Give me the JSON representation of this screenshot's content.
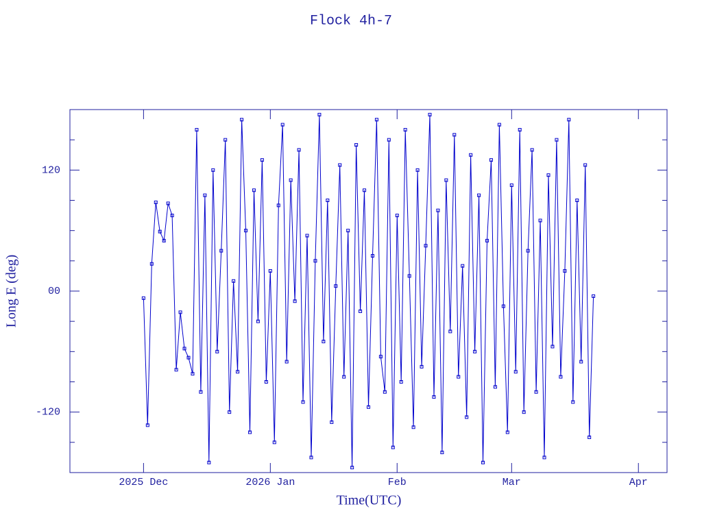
{
  "chart_data": {
    "type": "line",
    "title": "Flock 4h-7",
    "x_label": "Time(UTC)",
    "y_label": "Long E (deg)",
    "color": "#0000cc",
    "markers": true,
    "xlim": [
      "2025-11-13",
      "2026-04-08"
    ],
    "ylim": [
      -180,
      180
    ],
    "xticks": [
      {
        "value": "2025-12-01",
        "label": "2025 Dec"
      },
      {
        "value": "2026-01-01",
        "label": "2026 Jan"
      },
      {
        "value": "2026-02-01",
        "label": "Feb"
      },
      {
        "value": "2026-03-01",
        "label": "Mar"
      },
      {
        "value": "2026-04-01",
        "label": "Apr"
      }
    ],
    "yticks": [
      -120,
      {
        "value": 0,
        "label": "00"
      },
      120
    ],
    "minor_yticks": [
      -150,
      -90,
      -60,
      -30,
      30,
      60,
      90,
      150
    ],
    "x": [
      "2025-12-01",
      "2025-12-02",
      "2025-12-03",
      "2025-12-04",
      "2025-12-05",
      "2025-12-06",
      "2025-12-07",
      "2025-12-08",
      "2025-12-09",
      "2025-12-10",
      "2025-12-11",
      "2025-12-12",
      "2025-12-13",
      "2025-12-14",
      "2025-12-15",
      "2025-12-16",
      "2025-12-17",
      "2025-12-18",
      "2025-12-19",
      "2025-12-20",
      "2025-12-21",
      "2025-12-22",
      "2025-12-23",
      "2025-12-24",
      "2025-12-25",
      "2025-12-26",
      "2025-12-27",
      "2025-12-28",
      "2025-12-29",
      "2025-12-30",
      "2025-12-31",
      "2026-01-01",
      "2026-01-02",
      "2026-01-03",
      "2026-01-04",
      "2026-01-05",
      "2026-01-06",
      "2026-01-07",
      "2026-01-08",
      "2026-01-09",
      "2026-01-10",
      "2026-01-11",
      "2026-01-12",
      "2026-01-13",
      "2026-01-14",
      "2026-01-15",
      "2026-01-16",
      "2026-01-17",
      "2026-01-18",
      "2026-01-19",
      "2026-01-20",
      "2026-01-21",
      "2026-01-22",
      "2026-01-23",
      "2026-01-24",
      "2026-01-25",
      "2026-01-26",
      "2026-01-27",
      "2026-01-28",
      "2026-01-29",
      "2026-01-30",
      "2026-01-31",
      "2026-02-01",
      "2026-02-02",
      "2026-02-03",
      "2026-02-04",
      "2026-02-05",
      "2026-02-06",
      "2026-02-07",
      "2026-02-08",
      "2026-02-09",
      "2026-02-10",
      "2026-02-11",
      "2026-02-12",
      "2026-02-13",
      "2026-02-14",
      "2026-02-15",
      "2026-02-16",
      "2026-02-17",
      "2026-02-18",
      "2026-02-19",
      "2026-02-20",
      "2026-02-21",
      "2026-02-22",
      "2026-02-23",
      "2026-02-24",
      "2026-02-25",
      "2026-02-26",
      "2026-02-27",
      "2026-02-28",
      "2026-03-01",
      "2026-03-02",
      "2026-03-03",
      "2026-03-04",
      "2026-03-05",
      "2026-03-06",
      "2026-03-07",
      "2026-03-08",
      "2026-03-09",
      "2026-03-10",
      "2026-03-11",
      "2026-03-12",
      "2026-03-13",
      "2026-03-14",
      "2026-03-15",
      "2026-03-16",
      "2026-03-17",
      "2026-03-18",
      "2026-03-19",
      "2026-03-20",
      "2026-03-21"
    ],
    "values": [
      -7,
      -133,
      27,
      88,
      59,
      50,
      87,
      75,
      -78,
      -21,
      -57,
      -66,
      -82,
      160,
      -100,
      95,
      -170,
      120,
      -60,
      40,
      150,
      -120,
      10,
      -80,
      170,
      60,
      -140,
      100,
      -30,
      130,
      -90,
      20,
      -150,
      85,
      165,
      -70,
      110,
      -10,
      140,
      -110,
      55,
      -165,
      30,
      175,
      -50,
      90,
      -130,
      5,
      125,
      -85,
      60,
      -175,
      145,
      -20,
      100,
      -115,
      35,
      170,
      -65,
      -100,
      150,
      -155,
      75,
      -90,
      160,
      15,
      -135,
      120,
      -75,
      45,
      175,
      -105,
      80,
      -160,
      110,
      -40,
      155,
      -85,
      25,
      -125,
      135,
      -60,
      95,
      -170,
      50,
      130,
      -95,
      165,
      -15,
      -140,
      105,
      -80,
      160,
      -120,
      40,
      140,
      -100,
      70,
      -165,
      115,
      -55,
      150,
      -85,
      20,
      170,
      -110,
      90,
      -70,
      125,
      -145,
      -5
    ]
  }
}
